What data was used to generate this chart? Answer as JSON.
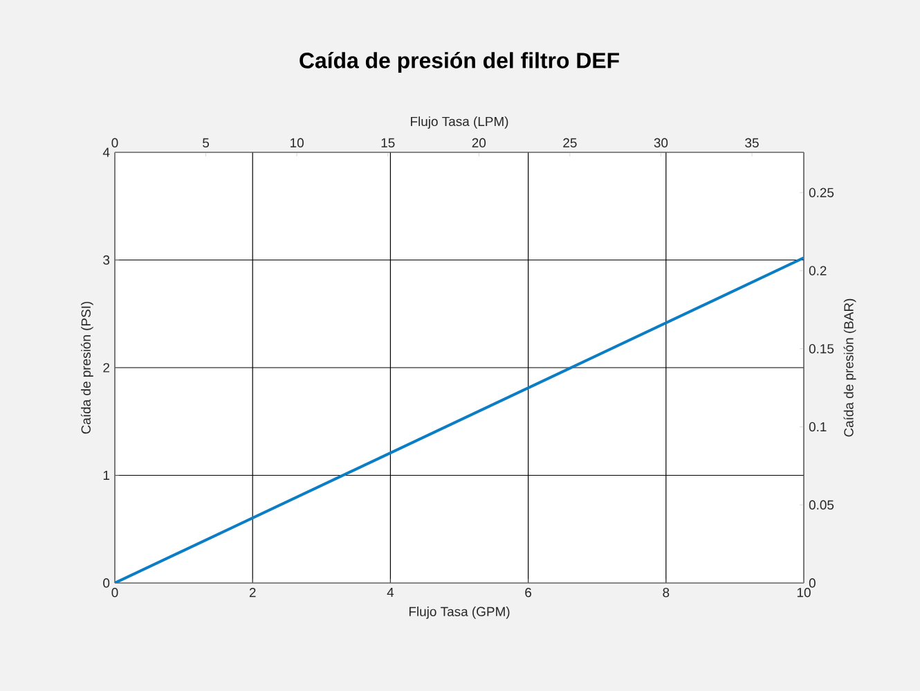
{
  "chart_data": {
    "type": "line",
    "title": "Caída de presión del filtro DEF",
    "xlabel": "Flujo Tasa (GPM)",
    "x2label": "Flujo Tasa (LPM)",
    "ylabel": "Caída de presión (PSI)",
    "y2label": "Caída de presión (BAR)",
    "x": [
      0,
      10
    ],
    "series": [
      {
        "color": "#0a7dc4",
        "values": [
          0,
          3.02
        ]
      }
    ],
    "xlim": [
      0,
      10
    ],
    "xticks": [
      0,
      2,
      4,
      6,
      8,
      10
    ],
    "x2lim": [
      0,
      37.85
    ],
    "x2ticks": [
      0,
      5,
      10,
      15,
      20,
      25,
      30,
      35
    ],
    "ylim": [
      0,
      4
    ],
    "yticks": [
      0,
      1,
      2,
      3,
      4
    ],
    "y2lim": [
      0,
      0.2758
    ],
    "y2ticks": [
      0,
      0.05,
      0.1,
      0.15,
      0.2,
      0.25
    ],
    "grid": true
  }
}
